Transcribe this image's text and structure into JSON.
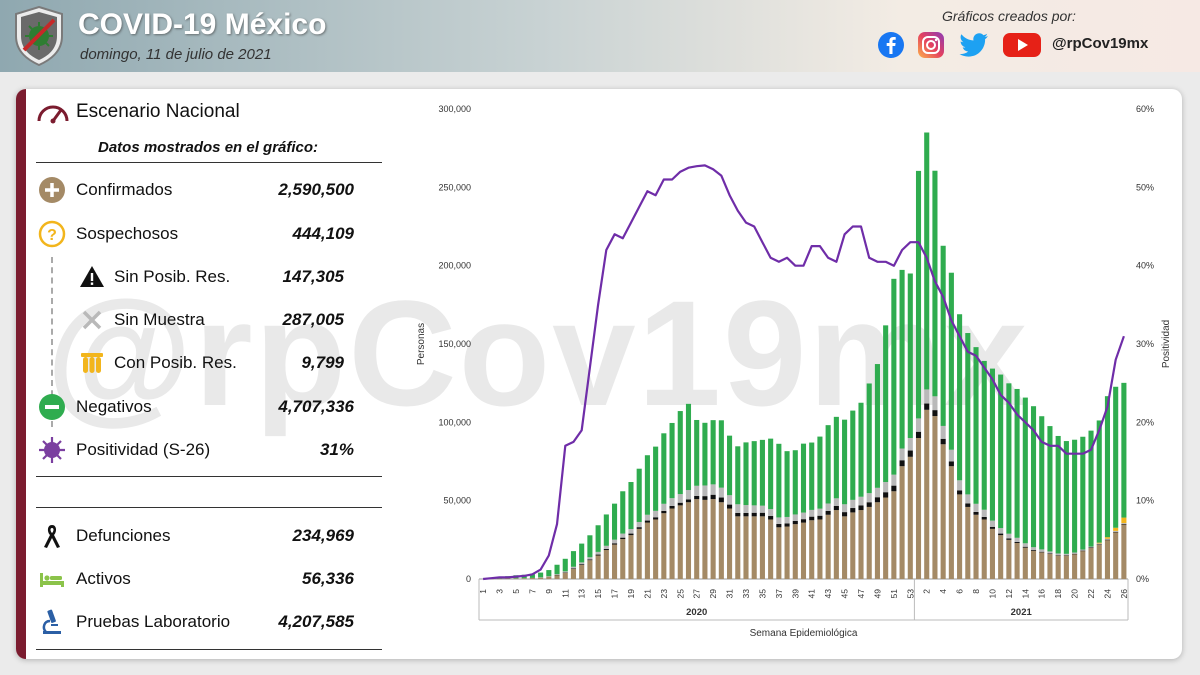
{
  "header": {
    "title": "COVID-19 México",
    "date": "domingo, 11 de julio de 2021",
    "credits_label": "Gráficos creados por:",
    "handle": "@rpCov19mx",
    "social_icons": [
      "facebook-icon",
      "instagram-icon",
      "twitter-icon",
      "youtube-icon"
    ]
  },
  "watermark": "@rpCov19mx",
  "panel": {
    "title": "Escenario Nacional",
    "subtitle": "Datos mostrados en el gráfico:",
    "stats": [
      {
        "label": "Confirmados",
        "value": "2,590,500",
        "icon": "plus-icon",
        "color": "#a48a66"
      },
      {
        "label": "Sospechosos",
        "value": "444,109",
        "icon": "question-icon",
        "color": "#f2b51c"
      },
      {
        "label": "Sin Posib. Res.",
        "value": "147,305",
        "icon": "warning-icon",
        "color": "#111111"
      },
      {
        "label": "Sin Muestra",
        "value": "287,005",
        "icon": "x-icon",
        "color": "#b9b9b9"
      },
      {
        "label": "Con Posib. Res.",
        "value": "9,799",
        "icon": "test-tubes-icon",
        "color": "#f2b51c"
      },
      {
        "label": "Negativos",
        "value": "4,707,336",
        "icon": "minus-icon",
        "color": "#2fac4f"
      },
      {
        "label": "Positividad (S-26)",
        "value": "31%",
        "icon": "virus-icon",
        "color": "#7b3fa0"
      }
    ],
    "stats2": [
      {
        "label": "Defunciones",
        "value": "234,969",
        "icon": "ribbon-icon",
        "color": "#111111"
      },
      {
        "label": "Activos",
        "value": "56,336",
        "icon": "bed-icon",
        "color": "#8bc34a"
      },
      {
        "label": "Pruebas Laboratorio",
        "value": "4,207,585",
        "icon": "microscope-icon",
        "color": "#2b5fa5"
      }
    ]
  },
  "chart_data": {
    "type": "bar",
    "xlabel": "Semana Epidemiológica",
    "ylabel": "Personas",
    "y2label": "Positividad",
    "ylim": [
      0,
      300000
    ],
    "y2lim": [
      0,
      0.6
    ],
    "yticks": [
      "0",
      "50,000",
      "100,000",
      "150,000",
      "200,000",
      "250,000",
      "300,000"
    ],
    "y2ticks": [
      "0%",
      "10%",
      "20%",
      "30%",
      "40%",
      "50%",
      "60%"
    ],
    "year_labels": [
      {
        "label": "2020",
        "weeks": "1-53"
      },
      {
        "label": "2021",
        "weeks": "1-26"
      }
    ],
    "x_tick_labels": [
      "1",
      "3",
      "5",
      "7",
      "9",
      "11",
      "13",
      "15",
      "17",
      "19",
      "21",
      "23",
      "25",
      "27",
      "29",
      "31",
      "33",
      "35",
      "37",
      "39",
      "41",
      "43",
      "45",
      "47",
      "49",
      "51",
      "53",
      "2",
      "4",
      "6",
      "8",
      "10",
      "12",
      "14",
      "16",
      "18",
      "20",
      "22",
      "24",
      "26"
    ],
    "weeks": [
      "1",
      "2",
      "3",
      "4",
      "5",
      "6",
      "7",
      "8",
      "9",
      "10",
      "11",
      "12",
      "13",
      "14",
      "15",
      "16",
      "17",
      "18",
      "19",
      "20",
      "21",
      "22",
      "23",
      "24",
      "25",
      "26",
      "27",
      "28",
      "29",
      "30",
      "31",
      "32",
      "33",
      "34",
      "35",
      "36",
      "37",
      "38",
      "39",
      "40",
      "41",
      "42",
      "43",
      "44",
      "45",
      "46",
      "47",
      "48",
      "49",
      "50",
      "51",
      "52",
      "53",
      "1",
      "2",
      "3",
      "4",
      "5",
      "6",
      "7",
      "8",
      "9",
      "10",
      "11",
      "12",
      "13",
      "14",
      "15",
      "16",
      "17",
      "18",
      "19",
      "20",
      "21",
      "22",
      "23",
      "24",
      "25",
      "26"
    ],
    "series": [
      {
        "name": "Confirmados",
        "color": "#a48a66",
        "values": [
          0,
          100,
          200,
          300,
          400,
          500,
          700,
          1000,
          1600,
          2500,
          4000,
          6500,
          9000,
          12000,
          15000,
          18500,
          22000,
          25500,
          28000,
          32000,
          36000,
          38000,
          42000,
          45000,
          47000,
          49000,
          51000,
          50500,
          51000,
          49000,
          45000,
          40000,
          40000,
          40000,
          40000,
          38000,
          33000,
          33500,
          35000,
          36000,
          37500,
          38000,
          41000,
          44000,
          40000,
          42500,
          44000,
          46000,
          49000,
          52000,
          56000,
          72000,
          78000,
          90000,
          108000,
          104000,
          86000,
          72000,
          54000,
          46000,
          41000,
          38000,
          32000,
          28000,
          25000,
          23000,
          20000,
          18000,
          17000,
          16000,
          15000,
          15000,
          16000,
          18000,
          20000,
          22000,
          25000,
          30000,
          35000
        ]
      },
      {
        "name": "Sin Posib. Res.",
        "color": "#111111",
        "values": [
          0,
          0,
          0,
          0,
          0,
          0,
          0,
          0,
          0,
          200,
          300,
          400,
          500,
          500,
          600,
          700,
          800,
          900,
          1000,
          1100,
          1300,
          1400,
          1500,
          1600,
          1700,
          1800,
          2000,
          2400,
          2800,
          3000,
          2500,
          2200,
          2200,
          2300,
          2300,
          2200,
          2100,
          2000,
          2100,
          2200,
          2300,
          2400,
          2500,
          2600,
          2700,
          2800,
          3000,
          3000,
          3200,
          3400,
          3600,
          3800,
          4000,
          4000,
          4000,
          3800,
          3500,
          3000,
          2500,
          2200,
          1800,
          1600,
          1300,
          1000,
          900,
          700,
          600,
          500,
          400,
          300,
          200,
          150,
          100,
          100,
          100,
          100,
          100,
          100,
          100
        ]
      },
      {
        "name": "Sin Muestra",
        "color": "#b9b9b9",
        "values": [
          0,
          0,
          0,
          0,
          0,
          0,
          0,
          100,
          200,
          400,
          600,
          900,
          1100,
          1400,
          1700,
          2000,
          2300,
          2600,
          2900,
          3300,
          3700,
          4100,
          4500,
          5000,
          5500,
          6000,
          6500,
          6800,
          6600,
          6300,
          6000,
          5500,
          5000,
          4700,
          4500,
          4400,
          4200,
          4100,
          4100,
          4200,
          4300,
          4500,
          4700,
          4900,
          5000,
          5200,
          5500,
          5800,
          6000,
          6500,
          7000,
          7500,
          8000,
          8500,
          9000,
          8800,
          8200,
          7500,
          6500,
          5800,
          5200,
          4600,
          4000,
          3500,
          3000,
          2600,
          2200,
          1800,
          1500,
          1300,
          1100,
          900,
          800,
          700,
          600,
          600,
          600,
          600,
          600
        ]
      },
      {
        "name": "Con Posib. Res.",
        "color": "#f2b51c",
        "values": [
          0,
          0,
          0,
          0,
          0,
          0,
          0,
          0,
          0,
          0,
          0,
          0,
          0,
          0,
          0,
          0,
          0,
          0,
          0,
          0,
          0,
          0,
          0,
          0,
          0,
          0,
          0,
          0,
          0,
          0,
          0,
          0,
          0,
          0,
          0,
          0,
          0,
          0,
          0,
          0,
          0,
          0,
          0,
          0,
          0,
          0,
          0,
          0,
          0,
          0,
          0,
          0,
          0,
          0,
          0,
          0,
          0,
          0,
          0,
          0,
          0,
          0,
          0,
          0,
          0,
          0,
          0,
          0,
          0,
          0,
          0,
          0,
          0,
          0,
          0,
          500,
          1000,
          2000,
          3500
        ]
      },
      {
        "name": "Negativos",
        "color": "#2fac4f",
        "values": [
          0,
          200,
          800,
          1500,
          2000,
          2200,
          2400,
          3000,
          3900,
          6000,
          8000,
          10000,
          12000,
          14000,
          17000,
          20000,
          23000,
          27000,
          30000,
          34000,
          38000,
          41000,
          45000,
          48000,
          53000,
          55000,
          42000,
          40000,
          41000,
          43000,
          38000,
          37000,
          40000,
          41000,
          42000,
          45000,
          47000,
          42000,
          41000,
          44000,
          43000,
          46000,
          50000,
          52000,
          54000,
          57000,
          60000,
          70000,
          79000,
          100000,
          125000,
          114000,
          105000,
          158000,
          164000,
          144000,
          115000,
          113000,
          106000,
          103000,
          100000,
          95000,
          97000,
          98000,
          96000,
          95000,
          93000,
          90000,
          85000,
          80000,
          75000,
          72000,
          72000,
          72000,
          74000,
          78000,
          90000,
          90000,
          86000
        ]
      },
      {
        "name": "Positividad",
        "color": "#6f2da8",
        "values": [
          0,
          0.001,
          0.002,
          0.002,
          0.003,
          0.004,
          0.006,
          0.012,
          0.03,
          0.07,
          0.17,
          0.175,
          0.19,
          0.27,
          0.35,
          0.42,
          0.44,
          0.435,
          0.455,
          0.475,
          0.495,
          0.49,
          0.51,
          0.51,
          0.52,
          0.525,
          0.527,
          0.528,
          0.523,
          0.515,
          0.49,
          0.47,
          0.455,
          0.45,
          0.43,
          0.41,
          0.405,
          0.41,
          0.4,
          0.4,
          0.425,
          0.425,
          0.41,
          0.405,
          0.44,
          0.45,
          0.45,
          0.41,
          0.405,
          0.405,
          0.4,
          0.42,
          0.43,
          0.43,
          0.41,
          0.38,
          0.36,
          0.33,
          0.31,
          0.29,
          0.285,
          0.27,
          0.255,
          0.235,
          0.225,
          0.21,
          0.2,
          0.19,
          0.175,
          0.17,
          0.17,
          0.16,
          0.16,
          0.16,
          0.165,
          0.19,
          0.22,
          0.28,
          0.31
        ]
      }
    ]
  }
}
